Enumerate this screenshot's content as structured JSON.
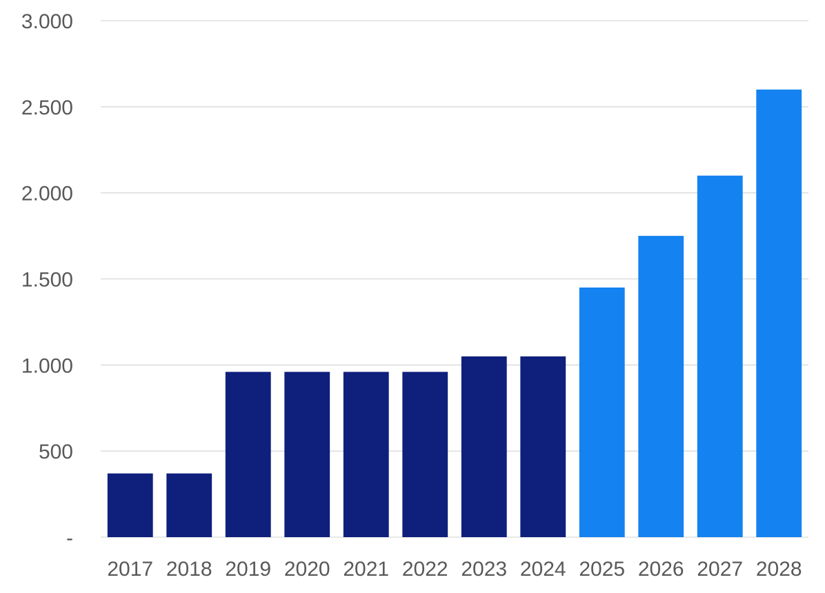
{
  "chart_data": {
    "type": "bar",
    "title": "",
    "xlabel": "",
    "ylabel": "",
    "categories": [
      "2017",
      "2018",
      "2019",
      "2020",
      "2021",
      "2022",
      "2023",
      "2024",
      "2025",
      "2026",
      "2027",
      "2028"
    ],
    "values": [
      370,
      370,
      960,
      960,
      960,
      960,
      1050,
      1050,
      1450,
      1750,
      2100,
      2600
    ],
    "ylim": [
      0,
      3000
    ],
    "yticks": [
      {
        "value": 0,
        "label": "-"
      },
      {
        "value": 500,
        "label": "500"
      },
      {
        "value": 1000,
        "label": "1.000"
      },
      {
        "value": 1500,
        "label": "1.500"
      },
      {
        "value": 2000,
        "label": "2.000"
      },
      {
        "value": 2500,
        "label": "2.500"
      },
      {
        "value": 3000,
        "label": "3.000"
      }
    ],
    "grid": true,
    "legend": "none",
    "colors": {
      "actual": "#0e1f7c",
      "forecast": "#1482f0",
      "gridline": "#d9d9d9",
      "label": "#595959"
    },
    "forecast_start_index": 8
  }
}
